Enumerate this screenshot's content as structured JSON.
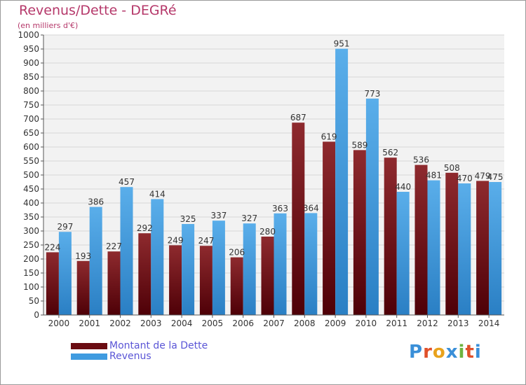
{
  "header": {
    "title": "Revenus/Dette - DEGRé",
    "subtitle": "(en milliers d'€)"
  },
  "legend": {
    "items": [
      {
        "label": "Montant de la Dette",
        "color": "#7a1218"
      },
      {
        "label": "Revenus",
        "color": "#3f9be0"
      }
    ]
  },
  "logo": {
    "text": "Proxiti",
    "letters": [
      {
        "ch": "P",
        "color": "#3a8fd8"
      },
      {
        "ch": "r",
        "color": "#e0502a"
      },
      {
        "ch": "o",
        "color": "#e8a21c"
      },
      {
        "ch": "x",
        "color": "#3a8fd8"
      },
      {
        "ch": "i",
        "color": "#6db33f"
      },
      {
        "ch": "t",
        "color": "#e0502a"
      },
      {
        "ch": "i",
        "color": "#3a8fd8"
      }
    ]
  },
  "chart_data": {
    "type": "bar",
    "title": "Revenus/Dette - DEGRé",
    "subtitle": "(en milliers d'€)",
    "categories": [
      "2000",
      "2001",
      "2002",
      "2003",
      "2004",
      "2005",
      "2006",
      "2007",
      "2008",
      "2009",
      "2010",
      "2011",
      "2012",
      "2013",
      "2014"
    ],
    "series": [
      {
        "name": "Montant de la Dette",
        "color": "#7a1218",
        "values": [
          224,
          193,
          227,
          292,
          249,
          247,
          206,
          280,
          687,
          619,
          589,
          562,
          536,
          508,
          479
        ]
      },
      {
        "name": "Revenus",
        "color": "#3f9be0",
        "values": [
          297,
          386,
          457,
          414,
          325,
          337,
          327,
          363,
          364,
          951,
          773,
          440,
          481,
          470,
          475
        ]
      }
    ],
    "ylim": [
      0,
      1000
    ],
    "ytick_step": 50,
    "grid": true,
    "legend_position": "bottom-left"
  }
}
